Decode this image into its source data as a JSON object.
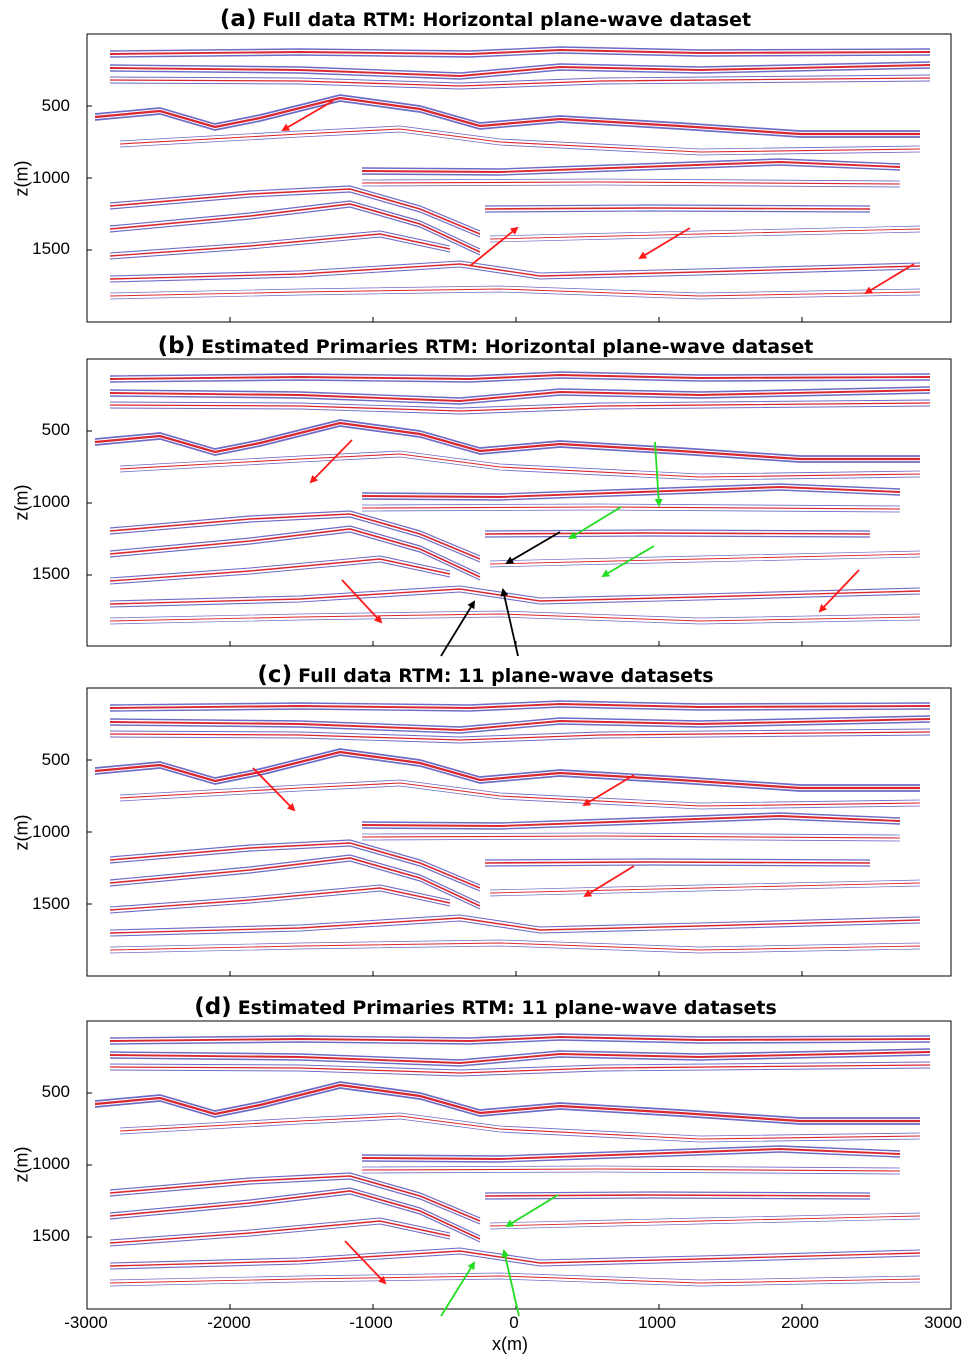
{
  "panels": [
    {
      "label": "(a)",
      "title": "Full data RTM: Horizontal plane-wave dataset"
    },
    {
      "label": "(b)",
      "title": "Estimated Primaries RTM: Horizontal plane-wave dataset"
    },
    {
      "label": "(c)",
      "title": "Full data RTM: 11 plane-wave datasets"
    },
    {
      "label": "(d)",
      "title": "Estimated Primaries RTM: 11 plane-wave datasets"
    }
  ],
  "y_axis_label": "z(m)",
  "y_ticks": [
    "500",
    "1000",
    "1500"
  ],
  "x_axis_label": "x(m)",
  "x_ticks": [
    "-3000",
    "-2000",
    "-1000",
    "0",
    "1000",
    "2000",
    "3000"
  ],
  "colors": {
    "positive": "#d4000c",
    "negative": "#0a0aa0",
    "frame": "#000000",
    "arrow_red": "#ff1a1a",
    "arrow_green": "#22dd22",
    "arrow_black": "#000000"
  }
}
